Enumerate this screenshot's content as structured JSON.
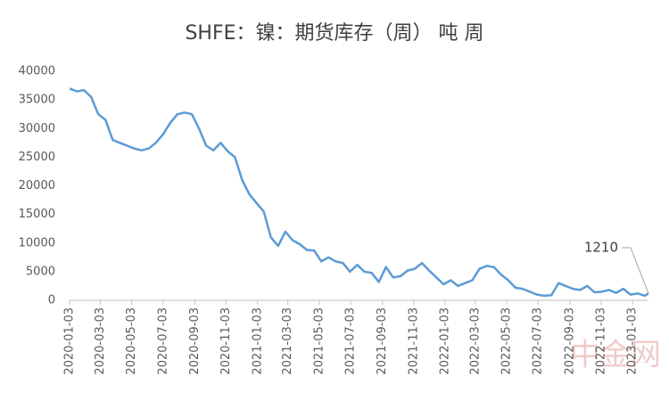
{
  "chart_data": {
    "type": "line",
    "title": "SHFE：镍：期货库存（周） 吨 周",
    "x": [
      "2020-01-03",
      "2020-01-17",
      "2020-01-31",
      "2020-02-14",
      "2020-02-28",
      "2020-03-13",
      "2020-03-27",
      "2020-04-10",
      "2020-04-24",
      "2020-05-08",
      "2020-05-22",
      "2020-06-05",
      "2020-06-19",
      "2020-07-03",
      "2020-07-17",
      "2020-07-31",
      "2020-08-14",
      "2020-08-28",
      "2020-09-11",
      "2020-09-25",
      "2020-10-09",
      "2020-10-23",
      "2020-11-06",
      "2020-11-20",
      "2020-12-04",
      "2020-12-18",
      "2021-01-01",
      "2021-01-15",
      "2021-01-29",
      "2021-02-12",
      "2021-02-26",
      "2021-03-12",
      "2021-03-26",
      "2021-04-09",
      "2021-04-23",
      "2021-05-07",
      "2021-05-21",
      "2021-06-04",
      "2021-06-18",
      "2021-07-02",
      "2021-07-16",
      "2021-07-30",
      "2021-08-13",
      "2021-08-27",
      "2021-09-10",
      "2021-09-24",
      "2021-10-08",
      "2021-10-22",
      "2021-11-05",
      "2021-11-19",
      "2021-12-03",
      "2021-12-17",
      "2021-12-31",
      "2022-01-14",
      "2022-01-28",
      "2022-02-11",
      "2022-02-25",
      "2022-03-11",
      "2022-03-25",
      "2022-04-08",
      "2022-04-22",
      "2022-05-06",
      "2022-05-20",
      "2022-06-03",
      "2022-06-17",
      "2022-07-01",
      "2022-07-15",
      "2022-07-29",
      "2022-08-12",
      "2022-08-26",
      "2022-09-09",
      "2022-09-23",
      "2022-10-07",
      "2022-10-21",
      "2022-11-04",
      "2022-11-18",
      "2022-12-02",
      "2022-12-16",
      "2022-12-30",
      "2023-01-13",
      "2023-01-27",
      "2023-02-03"
    ],
    "series": [
      {
        "name": "SHFE：镍：期货库存（周）",
        "color": "#5b9bd5",
        "values": [
          37000,
          36500,
          36700,
          35500,
          32500,
          31500,
          28000,
          27500,
          27000,
          26500,
          26200,
          26500,
          27500,
          29000,
          31000,
          32500,
          32800,
          32500,
          30000,
          27000,
          26200,
          27500,
          26000,
          25000,
          21000,
          18500,
          17000,
          15500,
          11000,
          9500,
          12000,
          10500,
          9800,
          8800,
          8700,
          6800,
          7500,
          6800,
          6500,
          5000,
          6200,
          5000,
          4800,
          3200,
          5800,
          4000,
          4200,
          5200,
          5500,
          6500,
          5200,
          4000,
          2800,
          3500,
          2500,
          3000,
          3500,
          5500,
          6000,
          5800,
          4500,
          3500,
          2200,
          2000,
          1500,
          1000,
          800,
          900,
          3000,
          2500,
          2000,
          1800,
          2500,
          1400,
          1500,
          1800,
          1300,
          2000,
          1000,
          1200,
          800,
          1210
        ]
      }
    ],
    "xlim": [
      "2020-01-03",
      "2023-02-03"
    ],
    "xticks": [
      "2020-01-03",
      "2020-03-03",
      "2020-05-03",
      "2020-07-03",
      "2020-09-03",
      "2020-11-03",
      "2021-01-03",
      "2021-03-03",
      "2021-05-03",
      "2021-07-03",
      "2021-09-03",
      "2021-11-03",
      "2022-01-03",
      "2022-03-03",
      "2022-05-03",
      "2022-07-03",
      "2022-09-03",
      "2022-11-03",
      "2023-01-03"
    ],
    "ylim": [
      0,
      40000
    ],
    "yticks": [
      0,
      5000,
      10000,
      15000,
      20000,
      25000,
      30000,
      35000,
      40000
    ],
    "grid": false,
    "watermark": "中金网"
  }
}
